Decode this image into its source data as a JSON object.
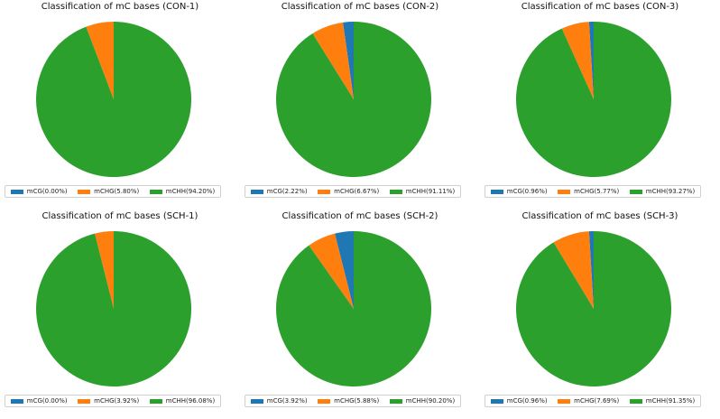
{
  "colors": {
    "mCG": "#1f77b4",
    "mCHG": "#ff7f0e",
    "mCHH": "#2ca02c"
  },
  "chart_data": [
    {
      "type": "pie",
      "title": "Classification of mC bases (CON-1)",
      "labels": [
        "mCG",
        "mCHG",
        "mCHH"
      ],
      "values": [
        0.0,
        5.8,
        94.2
      ],
      "legend": [
        "mCG(0.00%)",
        "mCHG(5.80%)",
        "mCHH(94.20%)"
      ]
    },
    {
      "type": "pie",
      "title": "Classification of mC bases (CON-2)",
      "labels": [
        "mCG",
        "mCHG",
        "mCHH"
      ],
      "values": [
        2.22,
        6.67,
        91.11
      ],
      "legend": [
        "mCG(2.22%)",
        "mCHG(6.67%)",
        "mCHH(91.11%)"
      ]
    },
    {
      "type": "pie",
      "title": "Classification of mC bases (CON-3)",
      "labels": [
        "mCG",
        "mCHG",
        "mCHH"
      ],
      "values": [
        0.96,
        5.77,
        93.27
      ],
      "legend": [
        "mCG(0.96%)",
        "mCHG(5.77%)",
        "mCHH(93.27%)"
      ]
    },
    {
      "type": "pie",
      "title": "Classification of mC bases (SCH-1)",
      "labels": [
        "mCG",
        "mCHG",
        "mCHH"
      ],
      "values": [
        0.0,
        3.92,
        96.08
      ],
      "legend": [
        "mCG(0.00%)",
        "mCHG(3.92%)",
        "mCHH(96.08%)"
      ]
    },
    {
      "type": "pie",
      "title": "Classification of mC bases (SCH-2)",
      "labels": [
        "mCG",
        "mCHG",
        "mCHH"
      ],
      "values": [
        3.92,
        5.88,
        90.2
      ],
      "legend": [
        "mCG(3.92%)",
        "mCHG(5.88%)",
        "mCHH(90.20%)"
      ]
    },
    {
      "type": "pie",
      "title": "Classification of mC bases (SCH-3)",
      "labels": [
        "mCG",
        "mCHG",
        "mCHH"
      ],
      "values": [
        0.96,
        7.69,
        91.35
      ],
      "legend": [
        "mCG(0.96%)",
        "mCHG(7.69%)",
        "mCHH(91.35%)"
      ]
    }
  ]
}
